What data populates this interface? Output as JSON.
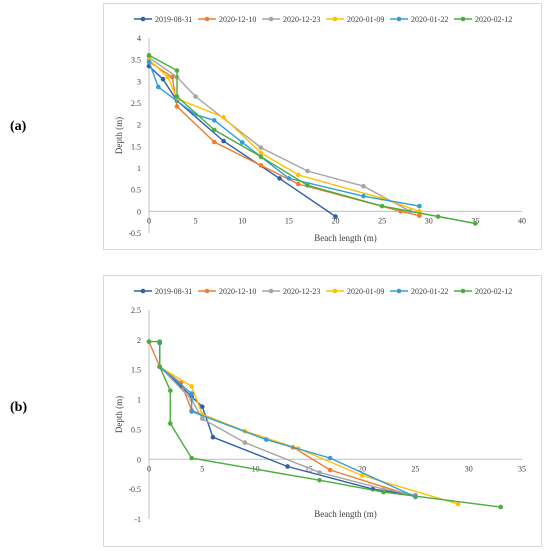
{
  "panels": [
    {
      "label": "(a)"
    },
    {
      "label": "(b)"
    }
  ],
  "chart_data": [
    {
      "type": "line",
      "xlabel": "Beach length (m)",
      "ylabel": "Depth (m)",
      "xlim": [
        0,
        40
      ],
      "ylim": [
        -0.5,
        4
      ],
      "xticks": [
        0,
        5,
        10,
        15,
        20,
        25,
        30,
        35,
        40
      ],
      "yticks": [
        -0.5,
        0,
        0.5,
        1,
        1.5,
        2,
        2.5,
        3,
        3.5,
        4
      ],
      "legend_position": "top",
      "grid": false,
      "series": [
        {
          "name": "2019-08-31",
          "color": "#2e5fa8",
          "points": [
            [
              0,
              3.35
            ],
            [
              1.5,
              3.05
            ],
            [
              3,
              2.55
            ],
            [
              8,
              1.62
            ],
            [
              14,
              0.76
            ],
            [
              20,
              -0.12
            ]
          ]
        },
        {
          "name": "2020-12-10",
          "color": "#ed7d31",
          "points": [
            [
              0,
              3.45
            ],
            [
              2.5,
              3.1
            ],
            [
              3,
              2.42
            ],
            [
              7,
              1.6
            ],
            [
              12,
              1.06
            ],
            [
              16,
              0.63
            ],
            [
              27,
              0
            ],
            [
              29,
              -0.1
            ]
          ]
        },
        {
          "name": "2020-12-23",
          "color": "#a5a5a5",
          "points": [
            [
              0,
              3.55
            ],
            [
              3,
              3.1
            ],
            [
              5,
              2.65
            ],
            [
              12,
              1.47
            ],
            [
              17,
              0.93
            ],
            [
              23,
              0.58
            ],
            [
              28,
              0
            ]
          ]
        },
        {
          "name": "2020-01-09",
          "color": "#ffc000",
          "points": [
            [
              0,
              3.5
            ],
            [
              2,
              3.1
            ],
            [
              3,
              2.6
            ],
            [
              8,
              2.17
            ],
            [
              12,
              1.35
            ],
            [
              16,
              0.84
            ],
            [
              25,
              0.3
            ],
            [
              29,
              0
            ]
          ]
        },
        {
          "name": "2020-01-22",
          "color": "#2e9fd8",
          "points": [
            [
              0,
              3.45
            ],
            [
              1,
              2.87
            ],
            [
              5,
              2.23
            ],
            [
              7,
              2.1
            ],
            [
              10,
              1.59
            ],
            [
              15,
              0.76
            ],
            [
              23,
              0.35
            ],
            [
              29,
              0.12
            ]
          ]
        },
        {
          "name": "2020-02-12",
          "color": "#4aad3d",
          "points": [
            [
              0,
              3.6
            ],
            [
              3,
              3.25
            ],
            [
              3,
              2.65
            ],
            [
              7,
              1.88
            ],
            [
              12,
              1.26
            ],
            [
              17,
              0.6
            ],
            [
              25,
              0.12
            ],
            [
              31,
              -0.12
            ],
            [
              35,
              -0.28
            ]
          ]
        }
      ]
    },
    {
      "type": "line",
      "xlabel": "Beach length (m)",
      "ylabel": "Depth (m)",
      "xlim": [
        0,
        35
      ],
      "ylim": [
        -1,
        2.5
      ],
      "xticks": [
        0,
        5,
        10,
        15,
        20,
        25,
        30,
        35
      ],
      "yticks": [
        -1,
        -0.5,
        0,
        0.5,
        1,
        1.5,
        2,
        2.5
      ],
      "legend_position": "top",
      "grid": false,
      "series": [
        {
          "name": "2019-08-31",
          "color": "#2e5fa8",
          "points": [
            [
              1,
              1.95
            ],
            [
              1,
              1.55
            ],
            [
              3,
              1.22
            ],
            [
              4,
              1.05
            ],
            [
              5,
              0.88
            ],
            [
              6,
              0.37
            ],
            [
              13,
              -0.12
            ],
            [
              21,
              -0.5
            ],
            [
              25,
              -0.6
            ]
          ]
        },
        {
          "name": "2020-12-10",
          "color": "#ed7d31",
          "points": [
            [
              0,
              1.97
            ],
            [
              1,
              1.55
            ],
            [
              3,
              1.28
            ],
            [
              4,
              0.82
            ],
            [
              9,
              0.47
            ],
            [
              13.5,
              0.2
            ],
            [
              17,
              -0.18
            ],
            [
              25,
              -0.63
            ]
          ]
        },
        {
          "name": "2020-12-23",
          "color": "#a5a5a5",
          "points": [
            [
              1,
              1.55
            ],
            [
              4,
              1.0
            ],
            [
              5,
              0.68
            ],
            [
              9,
              0.28
            ],
            [
              16,
              -0.22
            ],
            [
              22,
              -0.5
            ],
            [
              25,
              -0.6
            ]
          ]
        },
        {
          "name": "2020-01-09",
          "color": "#ffc000",
          "points": [
            [
              1,
              1.55
            ],
            [
              4,
              1.22
            ],
            [
              5,
              0.75
            ],
            [
              9,
              0.47
            ],
            [
              14,
              0.18
            ],
            [
              20,
              -0.27
            ],
            [
              29,
              -0.75
            ]
          ]
        },
        {
          "name": "2020-01-22",
          "color": "#2e9fd8",
          "points": [
            [
              1,
              1.97
            ],
            [
              1,
              1.55
            ],
            [
              4,
              1.1
            ],
            [
              4,
              0.8
            ],
            [
              11,
              0.33
            ],
            [
              17,
              0.02
            ],
            [
              25,
              -0.63
            ]
          ]
        },
        {
          "name": "2020-02-12",
          "color": "#4aad3d",
          "points": [
            [
              0,
              1.97
            ],
            [
              1,
              1.97
            ],
            [
              1,
              1.55
            ],
            [
              2,
              1.15
            ],
            [
              2,
              0.6
            ],
            [
              4,
              0.02
            ],
            [
              16,
              -0.35
            ],
            [
              22,
              -0.55
            ],
            [
              33,
              -0.8
            ]
          ]
        }
      ]
    }
  ]
}
